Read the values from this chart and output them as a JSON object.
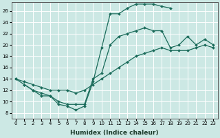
{
  "xlabel": "Humidex (Indice chaleur)",
  "background_color": "#cce8e4",
  "line_color": "#1a6b5a",
  "xlim": [
    -0.5,
    23.5
  ],
  "ylim": [
    7,
    27.5
  ],
  "xticks": [
    0,
    1,
    2,
    3,
    4,
    5,
    6,
    7,
    8,
    9,
    10,
    11,
    12,
    13,
    14,
    15,
    16,
    17,
    18,
    19,
    20,
    21,
    22,
    23
  ],
  "yticks": [
    8,
    10,
    12,
    14,
    16,
    18,
    20,
    22,
    24,
    26
  ],
  "line1_x": [
    0,
    1,
    2,
    3,
    4,
    5,
    6,
    7,
    8,
    9,
    10,
    11,
    12,
    13,
    14,
    15,
    16,
    17,
    18
  ],
  "line1_y": [
    14,
    13,
    12,
    11,
    11,
    9.5,
    9.2,
    8.5,
    9.2,
    13.5,
    19.5,
    25.5,
    25.5,
    26.5,
    27.2,
    27.2,
    27.2,
    26.8,
    26.5
  ],
  "line2_x": [
    1,
    2,
    3,
    4,
    5,
    6,
    7,
    8,
    9,
    10,
    11,
    12,
    13,
    14,
    15,
    16,
    17,
    18,
    19,
    20,
    21,
    22,
    23
  ],
  "line2_y": [
    13,
    12,
    11.5,
    11,
    10,
    9.5,
    9.5,
    9.5,
    14,
    15,
    20,
    21.5,
    22,
    22.5,
    23,
    22.5,
    22.5,
    19.5,
    20,
    21.5,
    20,
    21,
    20
  ],
  "line3_x": [
    0,
    1,
    2,
    3,
    4,
    5,
    6,
    7,
    8,
    9,
    10,
    11,
    12,
    13,
    14,
    15,
    16,
    17,
    18,
    19,
    20,
    21,
    22,
    23
  ],
  "line3_y": [
    14,
    13.5,
    13,
    12.5,
    12,
    12,
    12,
    11.5,
    12,
    13,
    14,
    15,
    16,
    17,
    18,
    18.5,
    19,
    19.5,
    19,
    19,
    19,
    19.5,
    20,
    19.5
  ]
}
